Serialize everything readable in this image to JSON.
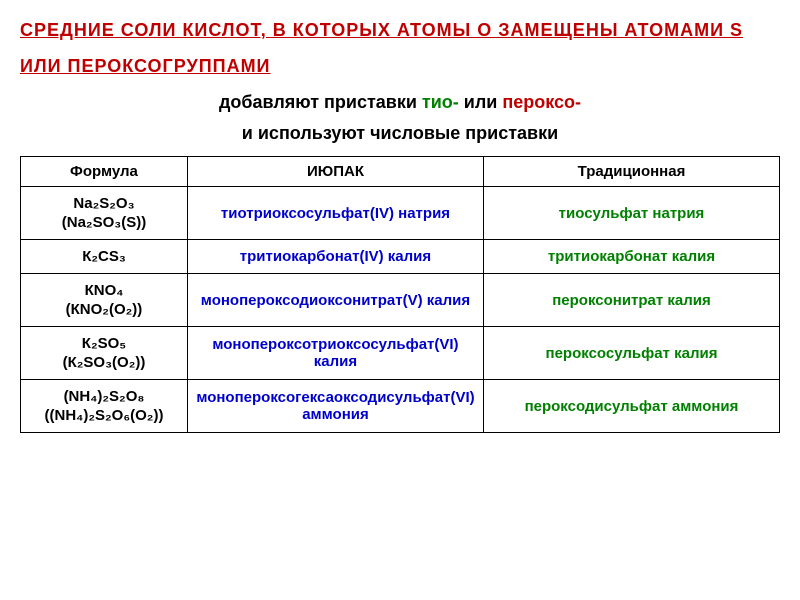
{
  "title": "СРЕДНИЕ СОЛИ КИСЛОТ, В КОТОРЫХ АТОМЫ О ЗАМЕЩЕНЫ АТОМАМИ S ИЛИ ПЕРОКСОГРУППАМИ",
  "subtitle1_pre": "добавляют приставки ",
  "subtitle1_tio": "тио-",
  "subtitle1_mid": " или ",
  "subtitle1_perox": "пероксо-",
  "subtitle2": "и используют числовые приставки",
  "headers": {
    "formula": "Формула",
    "iupac": "ИЮПАК",
    "trad": "Традиционная"
  },
  "rows": [
    {
      "formula_main": "Na₂S₂O₃",
      "formula_alt": "(Na₂SO₃(S))",
      "iupac": "тиотриоксосульфат(IV) натрия",
      "trad": "тиосульфат натрия"
    },
    {
      "formula_main": "К₂CS₃",
      "formula_alt": "",
      "iupac": "тритиокарбонат(IV) калия",
      "trad": "тритиокарбонат калия"
    },
    {
      "formula_main": "КNO₄",
      "formula_alt": "(КNO₂(O₂))",
      "iupac": "монопероксодиоксонитрат(V) калия",
      "trad": "пероксонитрат калия"
    },
    {
      "formula_main": "К₂SO₅",
      "formula_alt": "(К₂SO₃(O₂))",
      "iupac": "монопероксотриоксосульфат(VI) калия",
      "trad": "пероксосульфат калия"
    },
    {
      "formula_main": "(NH₄)₂S₂O₈",
      "formula_alt": "((NH₄)₂S₂O₆(O₂))",
      "iupac": "монопероксогексаоксодисульфат(VI) аммония",
      "trad": "пероксодисульфат аммония"
    }
  ],
  "colors": {
    "title": "#c00000",
    "tio": "#008000",
    "perox": "#c00000",
    "iupac": "#0000cc",
    "trad": "#008000",
    "border": "#000000",
    "background": "#ffffff"
  },
  "fonts": {
    "title_size": 18,
    "body_size": 15,
    "title_weight": "bold"
  }
}
